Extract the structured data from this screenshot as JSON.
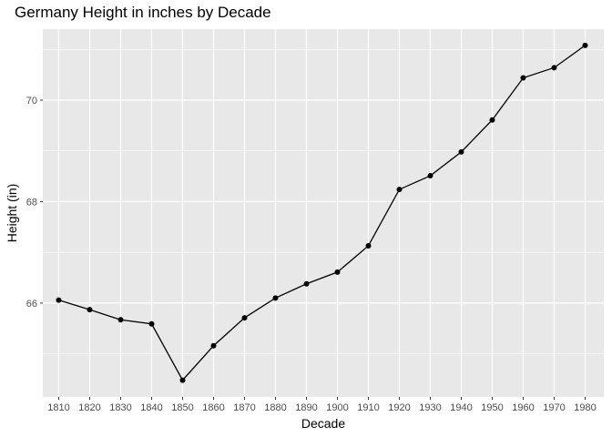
{
  "chart_data": {
    "type": "line",
    "title": "Germany Height in inches by Decade",
    "xlabel": "Decade",
    "ylabel": "Height (in)",
    "x": [
      1810,
      1820,
      1830,
      1840,
      1850,
      1860,
      1870,
      1880,
      1890,
      1900,
      1910,
      1920,
      1930,
      1940,
      1950,
      1960,
      1970,
      1980
    ],
    "x_tick_labels": [
      "1810",
      "1820",
      "1830",
      "1840",
      "1850",
      "1860",
      "1870",
      "1880",
      "1890",
      "1900",
      "1910",
      "1920",
      "1930",
      "1940",
      "1950",
      "1960",
      "1970",
      "1980"
    ],
    "series": [
      {
        "values": [
          66.06,
          65.87,
          65.67,
          65.59,
          64.48,
          65.16,
          65.71,
          66.1,
          66.38,
          66.61,
          67.13,
          68.24,
          68.51,
          68.98,
          69.61,
          70.44,
          70.64,
          71.08
        ]
      }
    ],
    "ylim": [
      64.15,
      71.4
    ],
    "y_ticks": [
      66,
      68,
      70
    ],
    "y_tick_labels": [
      "66",
      "68",
      "70"
    ],
    "grid": true,
    "colors": {
      "panel": "#e8e8e8",
      "grid": "#ffffff",
      "line": "#000000",
      "point": "#000000",
      "tick_text": "#4d4d4d"
    }
  }
}
